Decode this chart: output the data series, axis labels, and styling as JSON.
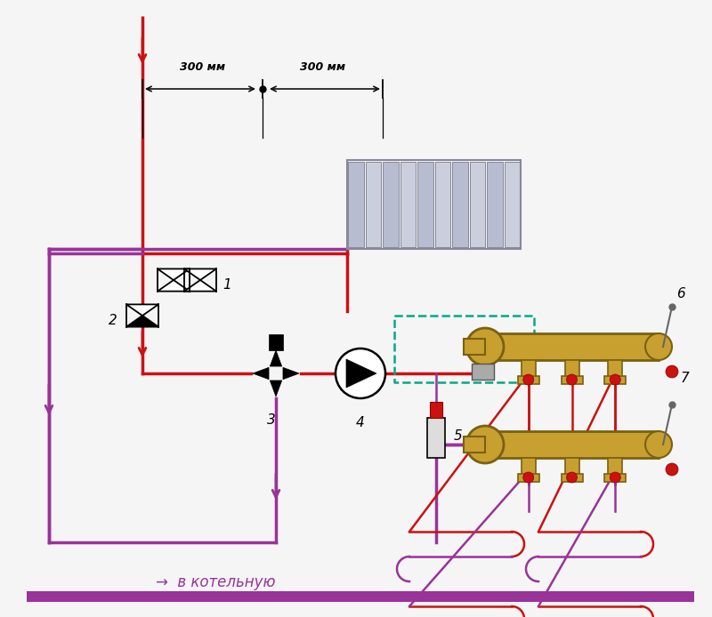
{
  "bg_color": "#f5f5f5",
  "red": "#cc1111",
  "purple": "#993399",
  "gold": "#c8a030",
  "gold_dark": "#7a6010",
  "gray_rad": "#b8bcd0",
  "gray_rad_edge": "#888899",
  "dashed_green": "#00aa88",
  "black": "#111111",
  "dim_label": "300 мм",
  "bottom_text": "→  в котельную",
  "label_1": "1",
  "label_2": "2",
  "label_3": "3",
  "label_4": "4",
  "label_5": "5",
  "label_6": "6",
  "label_7": "7",
  "lw_main": 2.5,
  "lw_small": 1.8
}
